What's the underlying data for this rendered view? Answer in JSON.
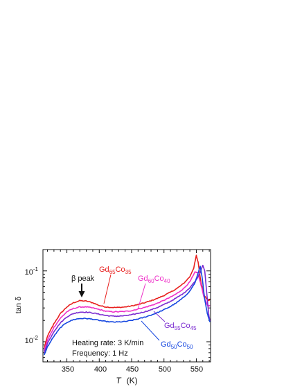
{
  "chart_data": {
    "type": "line",
    "xlabel": {
      "symbol": "T",
      "unit": "(K)"
    },
    "ylabel": "tan δ",
    "y_scale": "log",
    "xlim": [
      313,
      572
    ],
    "ylim": [
      0.0052,
      0.2
    ],
    "x_ticks": [
      350,
      400,
      450,
      500,
      550
    ],
    "y_ticks": [
      {
        "value": 0.1,
        "base": "10",
        "exp": "-1"
      },
      {
        "value": 0.01,
        "base": "10",
        "exp": "-2"
      }
    ],
    "series": [
      {
        "color": "#e8201e",
        "label": {
          "main1": "Gd",
          "sub1": "65",
          "main2": "Co",
          "sub2": "35"
        },
        "points": [
          [
            315,
            0.0082
          ],
          [
            320,
            0.012
          ],
          [
            330,
            0.018
          ],
          [
            340,
            0.025
          ],
          [
            350,
            0.031
          ],
          [
            360,
            0.0355
          ],
          [
            370,
            0.038
          ],
          [
            380,
            0.0375
          ],
          [
            390,
            0.0355
          ],
          [
            400,
            0.0325
          ],
          [
            410,
            0.031
          ],
          [
            420,
            0.0305
          ],
          [
            430,
            0.0305
          ],
          [
            440,
            0.031
          ],
          [
            450,
            0.032
          ],
          [
            460,
            0.0335
          ],
          [
            470,
            0.0355
          ],
          [
            480,
            0.038
          ],
          [
            490,
            0.041
          ],
          [
            500,
            0.045
          ],
          [
            510,
            0.05
          ],
          [
            520,
            0.0565
          ],
          [
            530,
            0.066
          ],
          [
            540,
            0.083
          ],
          [
            546,
            0.11
          ],
          [
            550,
            0.165
          ],
          [
            553,
            0.13
          ],
          [
            557,
            0.07
          ],
          [
            562,
            0.045
          ],
          [
            568,
            0.0385
          ],
          [
            571,
            0.0385
          ]
        ]
      },
      {
        "color": "#ee2fc8",
        "label": {
          "main1": "Gd",
          "sub1": "60",
          "main2": "Co",
          "sub2": "40"
        },
        "points": [
          [
            315,
            0.0075
          ],
          [
            320,
            0.0105
          ],
          [
            330,
            0.016
          ],
          [
            340,
            0.0215
          ],
          [
            350,
            0.0265
          ],
          [
            360,
            0.0295
          ],
          [
            370,
            0.031
          ],
          [
            380,
            0.031
          ],
          [
            390,
            0.03
          ],
          [
            400,
            0.0285
          ],
          [
            410,
            0.027
          ],
          [
            420,
            0.0265
          ],
          [
            430,
            0.0265
          ],
          [
            440,
            0.0268
          ],
          [
            450,
            0.0275
          ],
          [
            460,
            0.029
          ],
          [
            470,
            0.0305
          ],
          [
            480,
            0.0325
          ],
          [
            490,
            0.035
          ],
          [
            500,
            0.0385
          ],
          [
            510,
            0.0425
          ],
          [
            520,
            0.048
          ],
          [
            530,
            0.056
          ],
          [
            540,
            0.07
          ],
          [
            548,
            0.096
          ],
          [
            552,
            0.095
          ],
          [
            557,
            0.065
          ],
          [
            562,
            0.042
          ],
          [
            567,
            0.033
          ],
          [
            571,
            0.032
          ]
        ]
      },
      {
        "color": "#7b2bd0",
        "label": {
          "main1": "Gd",
          "sub1": "55",
          "main2": "Co",
          "sub2": "45"
        },
        "points": [
          [
            315,
            0.007
          ],
          [
            320,
            0.0095
          ],
          [
            330,
            0.014
          ],
          [
            340,
            0.0185
          ],
          [
            350,
            0.0225
          ],
          [
            360,
            0.025
          ],
          [
            370,
            0.0262
          ],
          [
            380,
            0.0262
          ],
          [
            390,
            0.0255
          ],
          [
            400,
            0.0245
          ],
          [
            410,
            0.0235
          ],
          [
            420,
            0.023
          ],
          [
            430,
            0.023
          ],
          [
            440,
            0.0233
          ],
          [
            450,
            0.024
          ],
          [
            460,
            0.0252
          ],
          [
            470,
            0.0265
          ],
          [
            480,
            0.0282
          ],
          [
            490,
            0.0305
          ],
          [
            500,
            0.0335
          ],
          [
            510,
            0.0372
          ],
          [
            520,
            0.042
          ],
          [
            530,
            0.048
          ],
          [
            540,
            0.058
          ],
          [
            550,
            0.075
          ],
          [
            556,
            0.095
          ],
          [
            560,
            0.12
          ],
          [
            563,
            0.1
          ],
          [
            566,
            0.05
          ],
          [
            569,
            0.025
          ],
          [
            571,
            0.0195
          ]
        ]
      },
      {
        "color": "#1446e0",
        "label": {
          "main1": "Gd",
          "sub1": "50",
          "main2": "Co",
          "sub2": "50"
        },
        "points": [
          [
            315,
            0.0065
          ],
          [
            320,
            0.0085
          ],
          [
            330,
            0.012
          ],
          [
            340,
            0.0158
          ],
          [
            350,
            0.0188
          ],
          [
            360,
            0.0205
          ],
          [
            370,
            0.0213
          ],
          [
            380,
            0.0213
          ],
          [
            390,
            0.0208
          ],
          [
            400,
            0.02
          ],
          [
            410,
            0.0193
          ],
          [
            420,
            0.019
          ],
          [
            430,
            0.019
          ],
          [
            440,
            0.0193
          ],
          [
            450,
            0.02
          ],
          [
            460,
            0.021
          ],
          [
            470,
            0.0222
          ],
          [
            480,
            0.0238
          ],
          [
            490,
            0.0258
          ],
          [
            500,
            0.0283
          ],
          [
            510,
            0.0315
          ],
          [
            520,
            0.0358
          ],
          [
            530,
            0.042
          ],
          [
            540,
            0.052
          ],
          [
            548,
            0.068
          ],
          [
            553,
            0.095
          ],
          [
            556,
            0.115
          ],
          [
            559,
            0.08
          ],
          [
            563,
            0.04
          ],
          [
            567,
            0.025
          ],
          [
            571,
            0.019
          ]
        ]
      }
    ],
    "annotations": {
      "beta_peak": {
        "symbol": "β",
        "text": "peak",
        "x": 373,
        "y": 0.038
      },
      "conditions": [
        "Heating rate: 3 K/min",
        "Frequency: 1 Hz"
      ]
    }
  }
}
